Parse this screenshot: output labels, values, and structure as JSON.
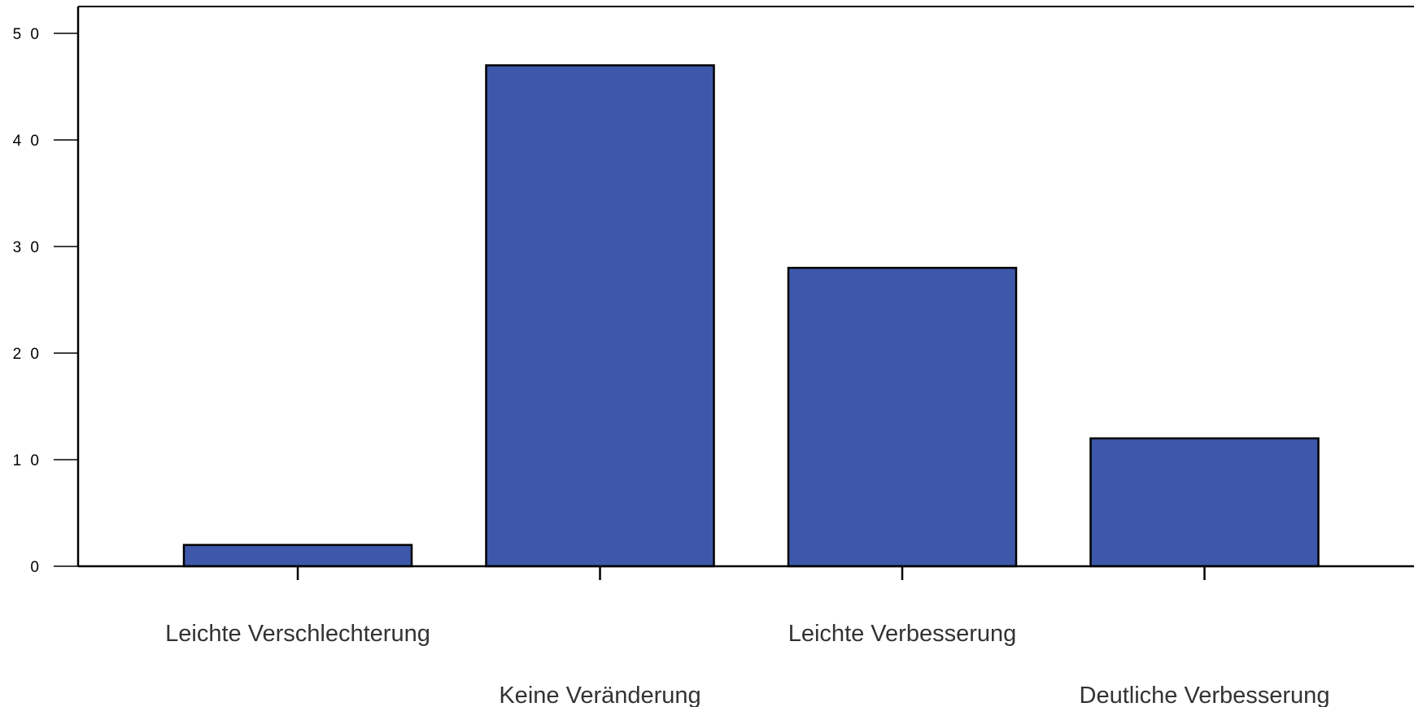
{
  "chart_data": {
    "type": "bar",
    "categories": [
      "Leichte Verschlechterung",
      "Keine Veränderung",
      "Leichte Verbesserung",
      "Deutliche Verbesserung"
    ],
    "values": [
      2,
      47,
      28,
      12
    ],
    "title": "",
    "xlabel": "",
    "ylabel": "",
    "ylim": [
      0,
      52.5
    ],
    "yticks": [
      0,
      10,
      20,
      30,
      40,
      50
    ],
    "ytick_labels": [
      "0",
      "1 0",
      "2 0",
      "3 0",
      "4 0",
      "5 0"
    ],
    "grid": false,
    "legend": "none",
    "colors": {
      "bar_fill": "#3d58aa",
      "bar_stroke": "#000000",
      "axis": "#000000",
      "text": "#333333"
    }
  }
}
